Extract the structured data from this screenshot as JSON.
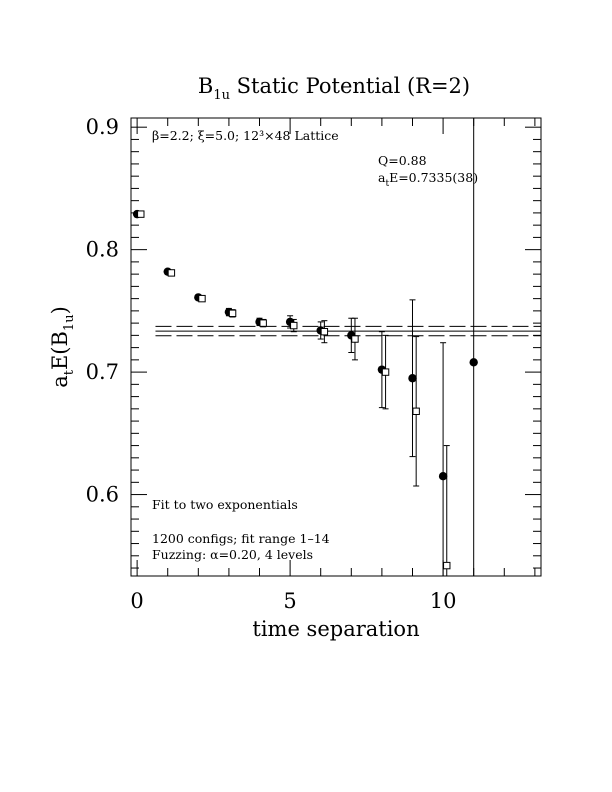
{
  "chart_data": {
    "type": "scatter",
    "title": {
      "main": "B",
      "sub": "1u",
      "rest": " Static Potential (R=2)"
    },
    "xlabel": "time separation",
    "ylabel": {
      "a": "a",
      "a_sub": "t",
      "mid": "E(B",
      "b_sub": "1u",
      "end": ")"
    },
    "xlim": [
      -0.2,
      13.2
    ],
    "ylim": [
      0.5335,
      0.9075
    ],
    "x_ticks": [
      0,
      5,
      10
    ],
    "x_tick_labels": [
      "0",
      "5",
      "10"
    ],
    "y_ticks": [
      0.6,
      0.7,
      0.8,
      0.9
    ],
    "y_tick_labels": [
      "0.6",
      "0.7",
      "0.8",
      "0.9"
    ],
    "annotations": {
      "lattice_info": "β=2.2; ξ=5.0; 12³×48 Lattice",
      "q_value": "Q=0.88",
      "energy_prefix": "a",
      "energy_sub": "t",
      "energy_rest": "E=0.7335(38)",
      "fit_note": "Fit to two exponentials",
      "configs_note": "1200 configs; fit range 1–14",
      "fuzzing_note": "Fuzzing: α=0.20, 4 levels"
    },
    "fit": {
      "value": 0.7335,
      "lower": 0.7297,
      "upper": 0.7373,
      "t_start": 0.6,
      "t_end": 13.2
    },
    "series": [
      {
        "marker": "filled-circle",
        "points": [
          {
            "x": 0,
            "y": 0.829,
            "err": 0.002
          },
          {
            "x": 1,
            "y": 0.782,
            "err": 0.002
          },
          {
            "x": 2,
            "y": 0.761,
            "err": 0.002
          },
          {
            "x": 3,
            "y": 0.749,
            "err": 0.003
          },
          {
            "x": 4,
            "y": 0.741,
            "err": 0.003
          },
          {
            "x": 5,
            "y": 0.741,
            "err": 0.005
          },
          {
            "x": 6,
            "y": 0.734,
            "err": 0.007
          },
          {
            "x": 7,
            "y": 0.73,
            "err": 0.014
          },
          {
            "x": 8,
            "y": 0.702,
            "err": 0.031
          },
          {
            "x": 9,
            "y": 0.695,
            "err": 0.064
          },
          {
            "x": 10,
            "y": 0.615,
            "err": 0.109
          },
          {
            "x": 11,
            "y": 0.708,
            "err": 0.205
          }
        ]
      },
      {
        "marker": "open-square",
        "points": [
          {
            "x": 0.12,
            "y": 0.829,
            "err": 0.002
          },
          {
            "x": 1.12,
            "y": 0.781,
            "err": 0.002
          },
          {
            "x": 2.12,
            "y": 0.76,
            "err": 0.002
          },
          {
            "x": 3.12,
            "y": 0.748,
            "err": 0.003
          },
          {
            "x": 4.12,
            "y": 0.74,
            "err": 0.003
          },
          {
            "x": 5.12,
            "y": 0.738,
            "err": 0.005
          },
          {
            "x": 6.12,
            "y": 0.733,
            "err": 0.009
          },
          {
            "x": 7.12,
            "y": 0.727,
            "err": 0.017
          },
          {
            "x": 8.12,
            "y": 0.7,
            "err": 0.03
          },
          {
            "x": 9.12,
            "y": 0.668,
            "err": 0.061
          },
          {
            "x": 10.12,
            "y": 0.542,
            "err": 0.098
          }
        ]
      }
    ]
  }
}
